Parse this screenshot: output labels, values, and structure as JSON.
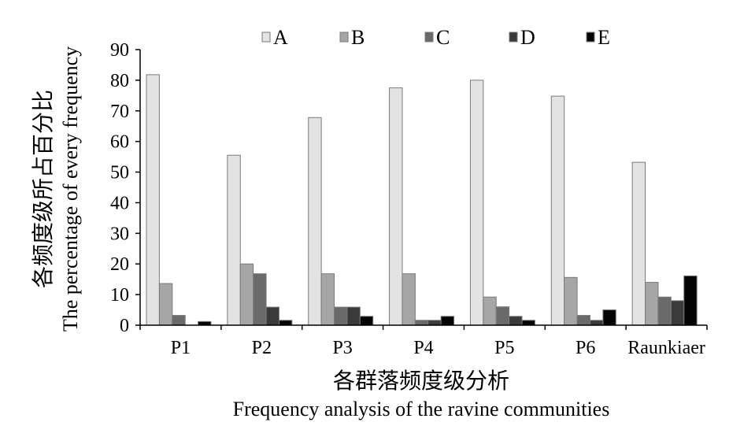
{
  "chart_data": {
    "type": "bar",
    "categories": [
      "P1",
      "P2",
      "P3",
      "P4",
      "P5",
      "P6",
      "Raunkiaer"
    ],
    "series": [
      {
        "name": "A",
        "values": [
          81.8,
          55.5,
          67.8,
          77.5,
          80.0,
          74.8,
          53.2
        ],
        "color": "#e3e3e3"
      },
      {
        "name": "B",
        "values": [
          13.6,
          20.0,
          16.8,
          16.8,
          9.2,
          15.6,
          14.0
        ],
        "color": "#a6a6a6"
      },
      {
        "name": "C",
        "values": [
          3.2,
          16.8,
          5.9,
          1.6,
          6.0,
          3.2,
          9.2
        ],
        "color": "#6a6a6a"
      },
      {
        "name": "D",
        "values": [
          0.0,
          5.9,
          5.9,
          1.6,
          2.9,
          1.6,
          8.0
        ],
        "color": "#3a3a3a"
      },
      {
        "name": "E",
        "values": [
          1.2,
          1.6,
          2.9,
          2.9,
          1.6,
          5.0,
          16.1
        ],
        "color": "#050505"
      }
    ],
    "ylim": [
      0,
      90
    ],
    "yticks": [
      "0",
      "10",
      "20",
      "30",
      "40",
      "50",
      "60",
      "70",
      "80",
      "90"
    ],
    "ylabel_cn": "各频度级所占百分比",
    "ylabel_en": "The percentage of every frequency",
    "xlabel_cn": "各群落频度级分析",
    "xlabel_en": "Frequency analysis of the ravine communities",
    "legend_position": "top",
    "grid": false
  }
}
